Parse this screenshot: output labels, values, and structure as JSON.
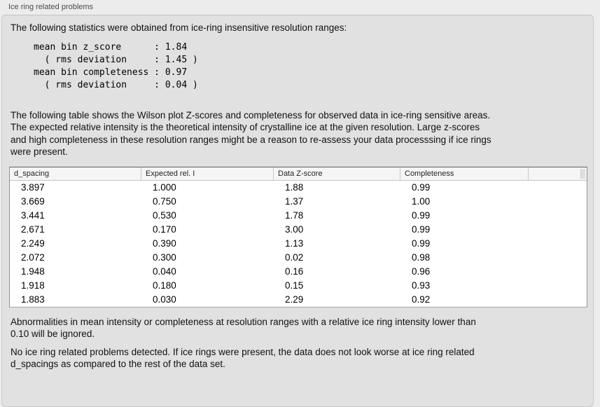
{
  "panel": {
    "title": "Ice ring related problems"
  },
  "intro_text": "The following statistics were obtained from ice-ring insensitive resolution ranges:",
  "summary_stats": "mean bin z_score      : 1.84\n  ( rms deviation     : 1.45 )\nmean bin completeness : 0.97\n  ( rms deviation     : 0.04 )",
  "table_description": "The following table shows the Wilson plot Z-scores and completeness for observed data in ice-ring sensitive areas.\nThe expected relative intensity is the theoretical intensity of crystalline ice at the given resolution. Large z-scores\nand high completeness in these resolution ranges might be a reason to re-assess your data processsing if ice rings\nwere present.",
  "table": {
    "columns": [
      "d_spacing",
      "Expected rel. I",
      "Data Z-score",
      "Completeness"
    ],
    "rows": [
      [
        "3.897",
        "1.000",
        "1.88",
        "0.99"
      ],
      [
        "3.669",
        "0.750",
        "1.37",
        "1.00"
      ],
      [
        "3.441",
        "0.530",
        "1.78",
        "0.99"
      ],
      [
        "2.671",
        "0.170",
        "3.00",
        "0.99"
      ],
      [
        "2.249",
        "0.390",
        "1.13",
        "0.99"
      ],
      [
        "2.072",
        "0.300",
        "0.02",
        "0.98"
      ],
      [
        "1.948",
        "0.040",
        "0.16",
        "0.96"
      ],
      [
        "1.918",
        "0.180",
        "0.15",
        "0.93"
      ],
      [
        "1.883",
        "0.030",
        "2.29",
        "0.92"
      ]
    ]
  },
  "notes": {
    "ignore_rule": "Abnormalities in mean intensity or completeness at resolution ranges with a relative ice ring intensity lower than\n0.10 will be ignored.",
    "conclusion": "No ice ring related problems detected. If ice rings were present, the data does not look worse at ice ring related\nd_spacings as compared to the rest of the data set."
  }
}
